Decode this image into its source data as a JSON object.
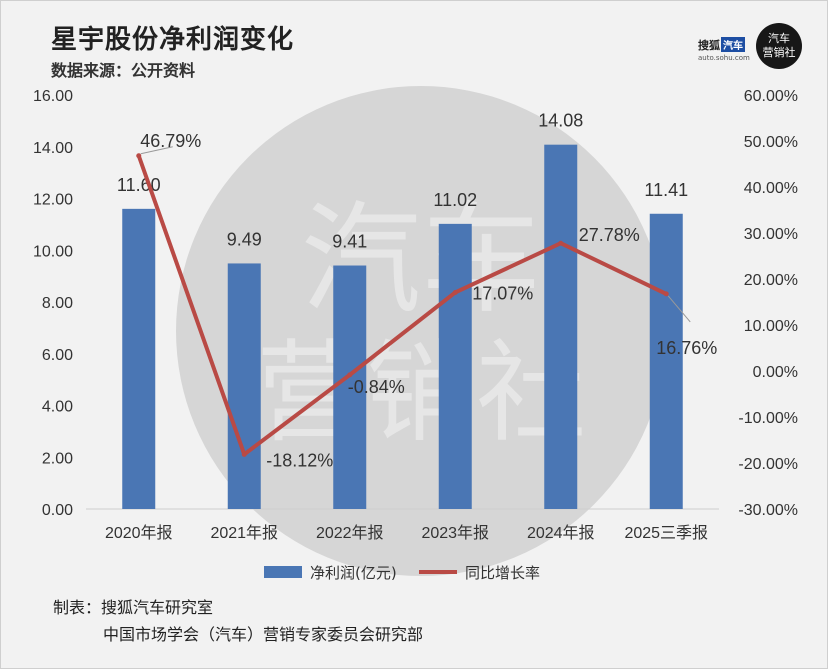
{
  "header": {
    "title": "星宇股份净利润变化",
    "subtitle": "数据来源：公开资料"
  },
  "logos": {
    "sohu_text": "搜狐",
    "sohu_tag": "汽车",
    "sohu_url": "auto.sohu.com",
    "circle_line1": "汽车",
    "circle_line2": "营销社"
  },
  "watermark": {
    "line1": "汽车",
    "line2": "营销社"
  },
  "footer": {
    "line1": "制表：搜狐汽车研究室",
    "line2": "中国市场学会（汽车）营销专家委员会研究部"
  },
  "colors": {
    "bar": "#4a76b4",
    "line": "#b94a45",
    "watermark_circle": "#d6d6d6"
  },
  "chart_data": {
    "type": "bar+line",
    "categories": [
      "2020年报",
      "2021年报",
      "2022年报",
      "2023年报",
      "2024年报",
      "2025三季报"
    ],
    "series": [
      {
        "name": "净利润(亿元)",
        "type": "bar",
        "axis": "left",
        "values": [
          11.6,
          9.49,
          9.41,
          11.02,
          14.08,
          11.41
        ],
        "labels": [
          "11.60",
          "9.49",
          "9.41",
          "11.02",
          "14.08",
          "11.41"
        ]
      },
      {
        "name": "同比增长率",
        "type": "line",
        "axis": "right",
        "values": [
          46.79,
          -18.12,
          -0.84,
          17.07,
          27.78,
          16.76
        ],
        "labels": [
          "46.79%",
          "-18.12%",
          "-0.84%",
          "17.07%",
          "27.78%",
          "16.76%"
        ]
      }
    ],
    "left_axis": {
      "range": [
        0,
        16
      ],
      "ticks": [
        "0.00",
        "2.00",
        "4.00",
        "6.00",
        "8.00",
        "10.00",
        "12.00",
        "14.00",
        "16.00"
      ]
    },
    "right_axis": {
      "range": [
        -30,
        60
      ],
      "ticks": [
        "-30.00%",
        "-20.00%",
        "-10.00%",
        "0.00%",
        "10.00%",
        "20.00%",
        "30.00%",
        "40.00%",
        "50.00%",
        "60.00%"
      ]
    },
    "grid": false,
    "legend_position": "bottom"
  }
}
